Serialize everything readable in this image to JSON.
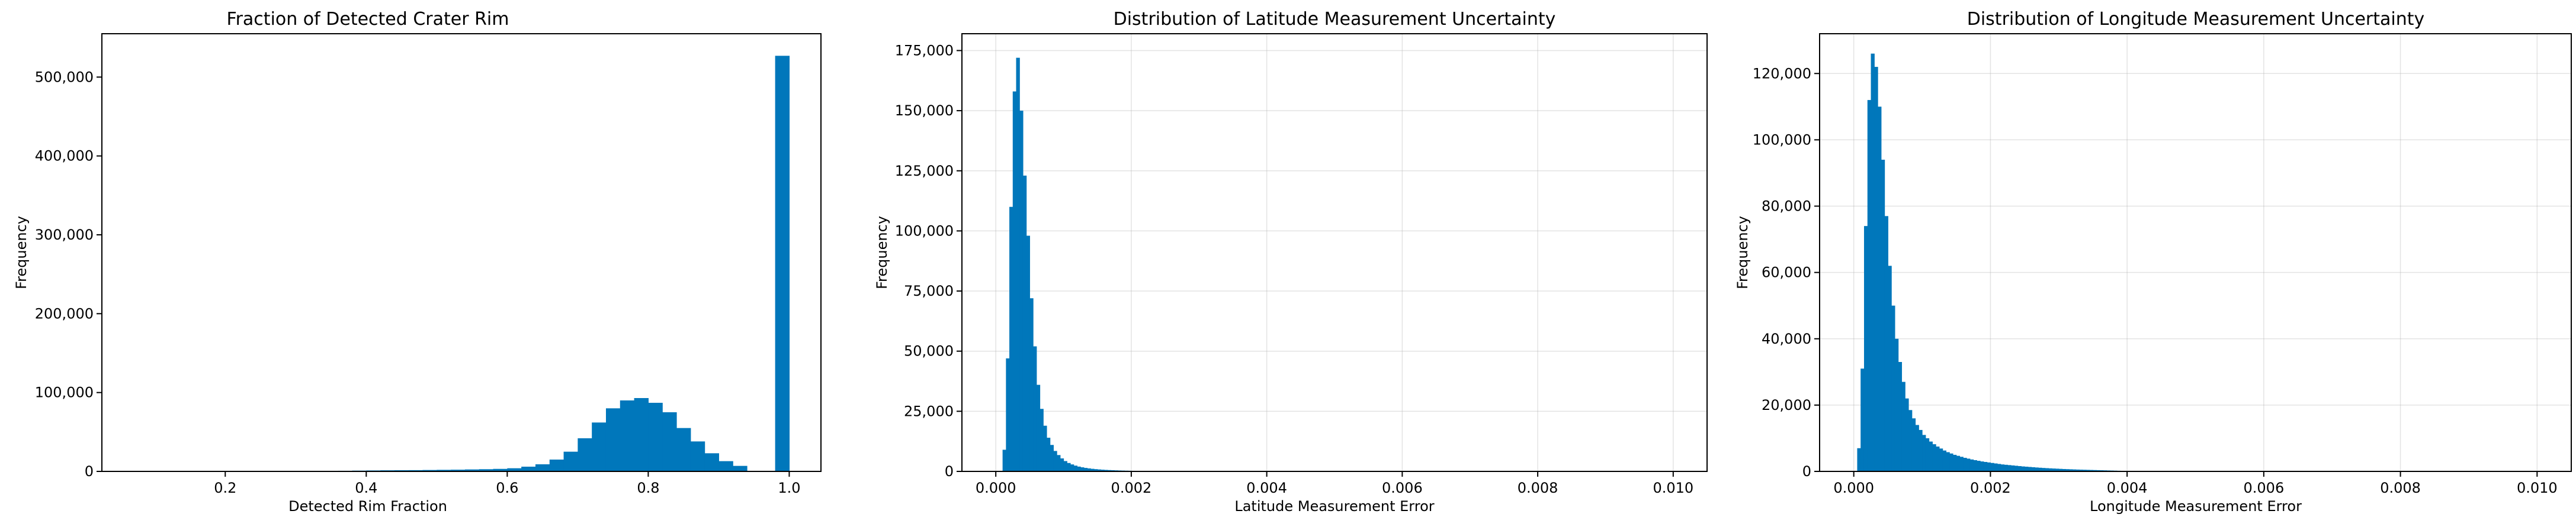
{
  "figure": {
    "bar_color": "#0077bb",
    "grid_color": "#b0b0b0",
    "frame_color": "#000000"
  },
  "chart_data": [
    {
      "type": "bar",
      "title": "Fraction of Detected Crater Rim",
      "xlabel": "Detected Rim Fraction",
      "ylabel": "Frequency",
      "xlim": [
        0.025,
        1.045
      ],
      "ylim": [
        0,
        555000
      ],
      "grid": false,
      "xticks": [
        0.2,
        0.4,
        0.6,
        0.8,
        1.0
      ],
      "xtick_labels": [
        "0.2",
        "0.4",
        "0.6",
        "0.8",
        "1.0"
      ],
      "yticks": [
        0,
        100000,
        200000,
        300000,
        400000,
        500000
      ],
      "ytick_labels": [
        "0",
        "100,000",
        "200,000",
        "300,000",
        "400,000",
        "500,000"
      ],
      "bin_edges": [
        0.34,
        0.36,
        0.38,
        0.4,
        0.42,
        0.44,
        0.46,
        0.48,
        0.5,
        0.52,
        0.54,
        0.56,
        0.58,
        0.6,
        0.62,
        0.64,
        0.66,
        0.68,
        0.7,
        0.72,
        0.74,
        0.76,
        0.78,
        0.8,
        0.82,
        0.84,
        0.86,
        0.88,
        0.9,
        0.92,
        0.94,
        0.96,
        0.98,
        1.0
      ],
      "values": [
        600,
        800,
        1000,
        1200,
        1400,
        1500,
        1600,
        1800,
        2000,
        2200,
        2500,
        2800,
        3200,
        4000,
        6000,
        9000,
        15000,
        25000,
        42000,
        62000,
        80000,
        90000,
        93000,
        87000,
        75000,
        55000,
        38000,
        23000,
        13000,
        7000,
        0,
        0,
        527000
      ]
    },
    {
      "type": "bar",
      "title": "Distribution of Latitude Measurement Uncertainty",
      "xlabel": "Latitude Measurement Error",
      "ylabel": "Frequency",
      "xlim": [
        -0.0005,
        0.0105
      ],
      "ylim": [
        0,
        182000
      ],
      "grid": true,
      "xticks": [
        0.0,
        0.002,
        0.004,
        0.006,
        0.008,
        0.01
      ],
      "xtick_labels": [
        "0.000",
        "0.002",
        "0.004",
        "0.006",
        "0.008",
        "0.010"
      ],
      "yticks": [
        0,
        25000,
        50000,
        75000,
        100000,
        125000,
        150000,
        175000
      ],
      "ytick_labels": [
        "0",
        "25,000",
        "50,000",
        "75,000",
        "100,000",
        "125,000",
        "150,000",
        "175,000"
      ],
      "bin_start": 0.0,
      "bin_width": 5e-05,
      "values": [
        0,
        0,
        9000,
        47000,
        110000,
        158000,
        172000,
        150000,
        123000,
        98000,
        72000,
        52000,
        36000,
        26000,
        19000,
        14000,
        11000,
        8500,
        6800,
        5400,
        4300,
        3500,
        2900,
        2400,
        2000,
        1700,
        1450,
        1250,
        1080,
        940,
        820,
        720,
        630,
        560,
        500,
        440,
        390,
        350,
        310,
        280,
        250,
        220,
        200,
        180,
        160,
        145,
        130,
        118,
        106,
        96
      ]
    },
    {
      "type": "bar",
      "title": "Distribution of Longitude Measurement Uncertainty",
      "xlabel": "Longitude Measurement Error",
      "ylabel": "Frequency",
      "xlim": [
        -0.0005,
        0.0105
      ],
      "ylim": [
        0,
        132000
      ],
      "grid": true,
      "xticks": [
        0.0,
        0.002,
        0.004,
        0.006,
        0.008,
        0.01
      ],
      "xtick_labels": [
        "0.000",
        "0.002",
        "0.004",
        "0.006",
        "0.008",
        "0.010"
      ],
      "yticks": [
        0,
        20000,
        40000,
        60000,
        80000,
        100000,
        120000
      ],
      "ytick_labels": [
        "0",
        "20,000",
        "40,000",
        "60,000",
        "80,000",
        "100,000",
        "120,000"
      ],
      "bin_start": 0.0,
      "bin_width": 5e-05,
      "values": [
        0,
        7000,
        31000,
        74000,
        112000,
        126000,
        122000,
        110000,
        94000,
        77000,
        62000,
        50000,
        40000,
        33000,
        27000,
        22000,
        18500,
        16000,
        14000,
        12500,
        11000,
        10000,
        9000,
        8200,
        7500,
        6900,
        6300,
        5800,
        5400,
        5000,
        4700,
        4400,
        4100,
        3850,
        3600,
        3400,
        3200,
        3000,
        2850,
        2700,
        2550,
        2400,
        2250,
        2100,
        2000,
        1900,
        1800,
        1700,
        1600,
        1500,
        1420,
        1340,
        1260,
        1180,
        1110,
        1040,
        980,
        920,
        870,
        820,
        770,
        720,
        680,
        640,
        600,
        560,
        530,
        500,
        470,
        440,
        410,
        380,
        350,
        320,
        290,
        260,
        230,
        200,
        170,
        150,
        130,
        110,
        90,
        75,
        60,
        50,
        40,
        30,
        20,
        10,
        5
      ]
    }
  ]
}
